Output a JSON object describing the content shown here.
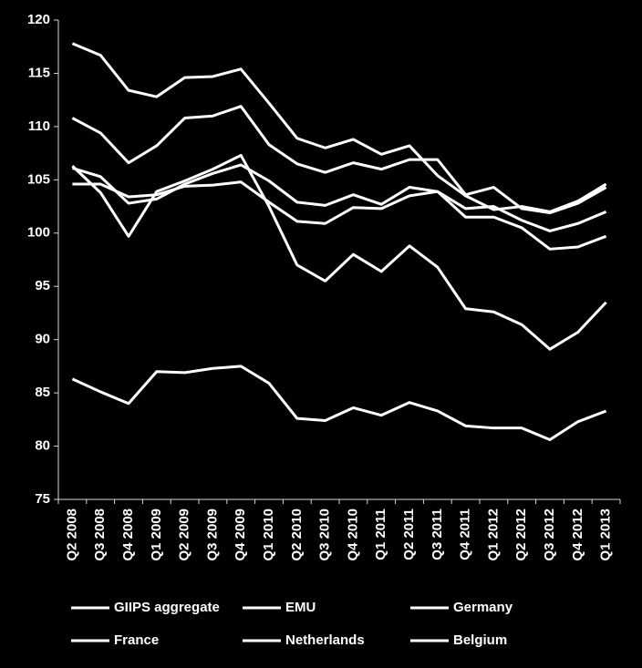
{
  "chart_data": {
    "type": "line",
    "categories": [
      "Q2 2008",
      "Q3 2008",
      "Q4 2008",
      "Q1 2009",
      "Q2 2009",
      "Q3 2009",
      "Q4 2009",
      "Q1 2010",
      "Q2 2010",
      "Q3 2010",
      "Q4 2010",
      "Q1 2011",
      "Q2 2011",
      "Q3 2011",
      "Q4 2011",
      "Q1 2012",
      "Q2 2012",
      "Q3 2012",
      "Q4 2012",
      "Q1 2013"
    ],
    "series": [
      {
        "name": "GIIPS aggregate",
        "color": "#ffffff",
        "values": [
          117.8,
          116.7,
          113.4,
          112.8,
          114.6,
          114.7,
          115.4,
          112.2,
          108.9,
          108.0,
          108.8,
          107.4,
          108.2,
          105.4,
          103.5,
          102.2,
          102.5,
          102.0,
          103.0,
          104.6
        ]
      },
      {
        "name": "EMU",
        "color": "#ffffff",
        "values": [
          110.8,
          109.4,
          106.6,
          108.2,
          110.8,
          111.0,
          111.9,
          108.3,
          106.5,
          105.7,
          106.6,
          106.0,
          106.9,
          106.9,
          103.6,
          104.3,
          102.3,
          101.9,
          102.8,
          104.3
        ]
      },
      {
        "name": "Germany",
        "color": "#ffffff",
        "values": [
          106.3,
          103.8,
          99.7,
          103.9,
          104.9,
          106.0,
          107.3,
          102.5,
          97.0,
          95.5,
          98.0,
          96.4,
          98.8,
          96.8,
          92.9,
          92.6,
          91.4,
          89.1,
          90.7,
          93.5
        ]
      },
      {
        "name": "France",
        "color": "#ffffff",
        "values": [
          106.1,
          105.3,
          102.8,
          103.2,
          104.6,
          105.6,
          106.4,
          104.9,
          102.9,
          102.6,
          103.6,
          102.7,
          104.3,
          103.9,
          102.3,
          102.5,
          101.2,
          100.2,
          100.9,
          102.0
        ]
      },
      {
        "name": "Netherlands",
        "color": "#ffffff",
        "values": [
          104.6,
          104.6,
          103.4,
          103.6,
          104.4,
          104.5,
          104.8,
          102.9,
          101.1,
          100.9,
          102.4,
          102.3,
          103.5,
          103.9,
          101.5,
          101.5,
          100.5,
          98.5,
          98.7,
          99.7
        ]
      },
      {
        "name": "Belgium",
        "color": "#ffffff",
        "values": [
          86.3,
          85.1,
          84.0,
          87.0,
          86.9,
          87.3,
          87.5,
          85.9,
          82.6,
          82.4,
          83.6,
          82.9,
          84.1,
          83.3,
          81.9,
          81.7,
          81.7,
          80.6,
          82.3,
          83.3
        ]
      }
    ],
    "ylim": [
      75,
      120
    ],
    "yticks": [
      75,
      80,
      85,
      90,
      95,
      100,
      105,
      110,
      115,
      120
    ],
    "grid": false
  }
}
